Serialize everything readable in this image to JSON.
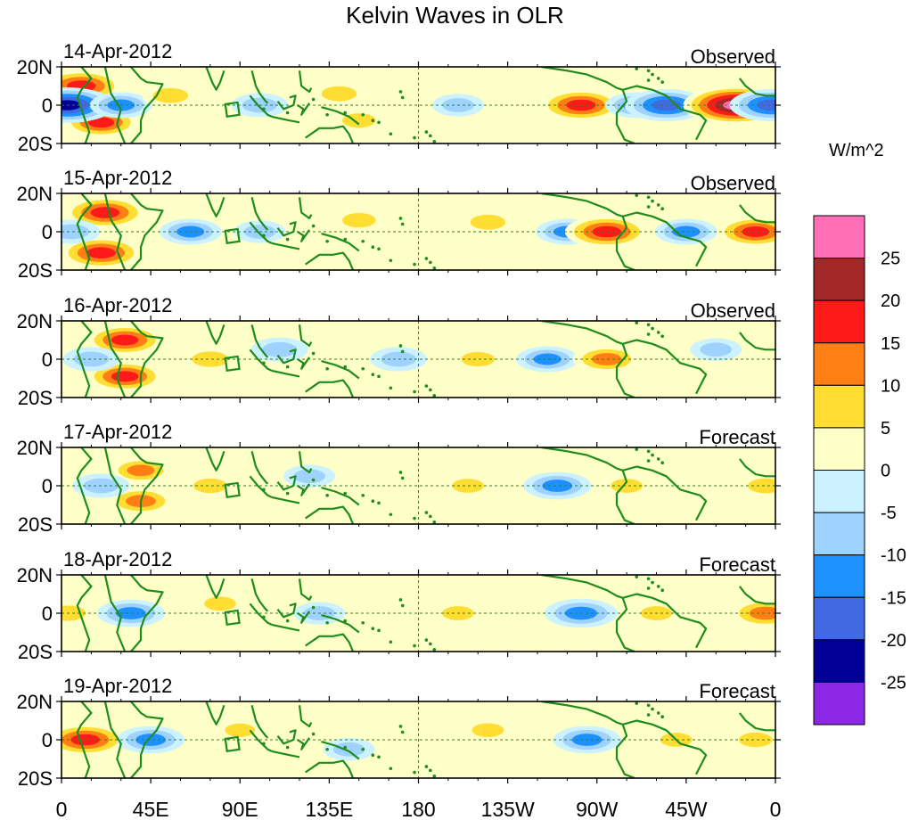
{
  "figure": {
    "title": "Kelvin Waves in OLR",
    "colorbar_unit": "W/m^2"
  },
  "chart_data": {
    "type": "heatmap",
    "title": "Kelvin Waves in OLR",
    "x_ticks": [
      "0",
      "45E",
      "90E",
      "135E",
      "180",
      "135W",
      "90W",
      "45W",
      "0"
    ],
    "x_tick_lon": [
      0,
      45,
      90,
      135,
      180,
      225,
      270,
      315,
      360
    ],
    "xlim": [
      0,
      360
    ],
    "y_ticks": [
      "20N",
      "0",
      "20S"
    ],
    "y_tick_lat": [
      20,
      0,
      -20
    ],
    "ylim": [
      -20,
      20
    ],
    "colorbar": {
      "unit": "W/m^2",
      "labels": [
        "25",
        "20",
        "15",
        "10",
        "5",
        "0",
        "-5",
        "-10",
        "-15",
        "-20",
        "-25"
      ],
      "colors": [
        "#ff70b8",
        "#a52828",
        "#ff1a1a",
        "#ff7f14",
        "#ffdd33",
        "#ffffc8",
        "#cdf2ff",
        "#9fd2ff",
        "#1e90ff",
        "#4169e1",
        "#000096",
        "#8c28e6"
      ]
    },
    "panels": [
      {
        "date": "14-Apr-2012",
        "label": "Observed",
        "anomalies": [
          {
            "lon": 10,
            "lat": 10,
            "value": 18
          },
          {
            "lon": 20,
            "lat": -9,
            "value": 15
          },
          {
            "lon": 3,
            "lat": 0,
            "value": -22
          },
          {
            "lon": 30,
            "lat": 0,
            "value": -10
          },
          {
            "lon": 55,
            "lat": 5,
            "value": 8
          },
          {
            "lon": 100,
            "lat": 0,
            "value": -8
          },
          {
            "lon": 140,
            "lat": 6,
            "value": 8
          },
          {
            "lon": 150,
            "lat": -8,
            "value": 7
          },
          {
            "lon": 200,
            "lat": 0,
            "value": -6
          },
          {
            "lon": 262,
            "lat": 0,
            "value": 18
          },
          {
            "lon": 290,
            "lat": 0,
            "value": -10
          },
          {
            "lon": 305,
            "lat": 0,
            "value": -18
          },
          {
            "lon": 340,
            "lat": 0,
            "value": 26
          },
          {
            "lon": 358,
            "lat": 0,
            "value": -18
          }
        ]
      },
      {
        "date": "15-Apr-2012",
        "label": "Observed",
        "anomalies": [
          {
            "lon": 22,
            "lat": 10,
            "value": 18
          },
          {
            "lon": 20,
            "lat": -11,
            "value": 18
          },
          {
            "lon": 5,
            "lat": 0,
            "value": -8
          },
          {
            "lon": 65,
            "lat": 0,
            "value": -10
          },
          {
            "lon": 100,
            "lat": 0,
            "value": -6
          },
          {
            "lon": 150,
            "lat": 6,
            "value": 7
          },
          {
            "lon": 215,
            "lat": 5,
            "value": 8
          },
          {
            "lon": 255,
            "lat": 0,
            "value": -10
          },
          {
            "lon": 275,
            "lat": 0,
            "value": 18
          },
          {
            "lon": 315,
            "lat": 0,
            "value": -10
          },
          {
            "lon": 350,
            "lat": 0,
            "value": 16
          }
        ]
      },
      {
        "date": "16-Apr-2012",
        "label": "Observed",
        "anomalies": [
          {
            "lon": 32,
            "lat": 10,
            "value": 16
          },
          {
            "lon": 32,
            "lat": -9,
            "value": 16
          },
          {
            "lon": 15,
            "lat": 0,
            "value": -8
          },
          {
            "lon": 75,
            "lat": 0,
            "value": 9
          },
          {
            "lon": 110,
            "lat": 5,
            "value": -8
          },
          {
            "lon": 170,
            "lat": 0,
            "value": -8
          },
          {
            "lon": 210,
            "lat": 0,
            "value": 7
          },
          {
            "lon": 245,
            "lat": 0,
            "value": -10
          },
          {
            "lon": 275,
            "lat": 0,
            "value": 12
          },
          {
            "lon": 330,
            "lat": 5,
            "value": -6
          }
        ]
      },
      {
        "date": "17-Apr-2012",
        "label": "Forecast",
        "anomalies": [
          {
            "lon": 40,
            "lat": 8,
            "value": 10
          },
          {
            "lon": 40,
            "lat": -8,
            "value": 12
          },
          {
            "lon": 20,
            "lat": 0,
            "value": -8
          },
          {
            "lon": 75,
            "lat": 0,
            "value": 7
          },
          {
            "lon": 125,
            "lat": 5,
            "value": -6
          },
          {
            "lon": 205,
            "lat": 0,
            "value": 6
          },
          {
            "lon": 250,
            "lat": 0,
            "value": -12
          },
          {
            "lon": 285,
            "lat": 0,
            "value": 6
          },
          {
            "lon": 355,
            "lat": 0,
            "value": 8
          }
        ]
      },
      {
        "date": "18-Apr-2012",
        "label": "Forecast",
        "anomalies": [
          {
            "lon": 35,
            "lat": 0,
            "value": -12
          },
          {
            "lon": 3,
            "lat": 0,
            "value": 9
          },
          {
            "lon": 80,
            "lat": 5,
            "value": 6
          },
          {
            "lon": 130,
            "lat": 0,
            "value": -6
          },
          {
            "lon": 200,
            "lat": 0,
            "value": 6
          },
          {
            "lon": 262,
            "lat": 0,
            "value": -14
          },
          {
            "lon": 300,
            "lat": 0,
            "value": 6
          },
          {
            "lon": 355,
            "lat": 0,
            "value": 14
          }
        ]
      },
      {
        "date": "19-Apr-2012",
        "label": "Forecast",
        "anomalies": [
          {
            "lon": 12,
            "lat": 0,
            "value": 18
          },
          {
            "lon": 45,
            "lat": 0,
            "value": -12
          },
          {
            "lon": 90,
            "lat": 5,
            "value": 5
          },
          {
            "lon": 145,
            "lat": -5,
            "value": -6
          },
          {
            "lon": 215,
            "lat": 5,
            "value": 6
          },
          {
            "lon": 265,
            "lat": 0,
            "value": -12
          },
          {
            "lon": 310,
            "lat": 0,
            "value": 6
          },
          {
            "lon": 350,
            "lat": 0,
            "value": 7
          }
        ]
      }
    ]
  }
}
